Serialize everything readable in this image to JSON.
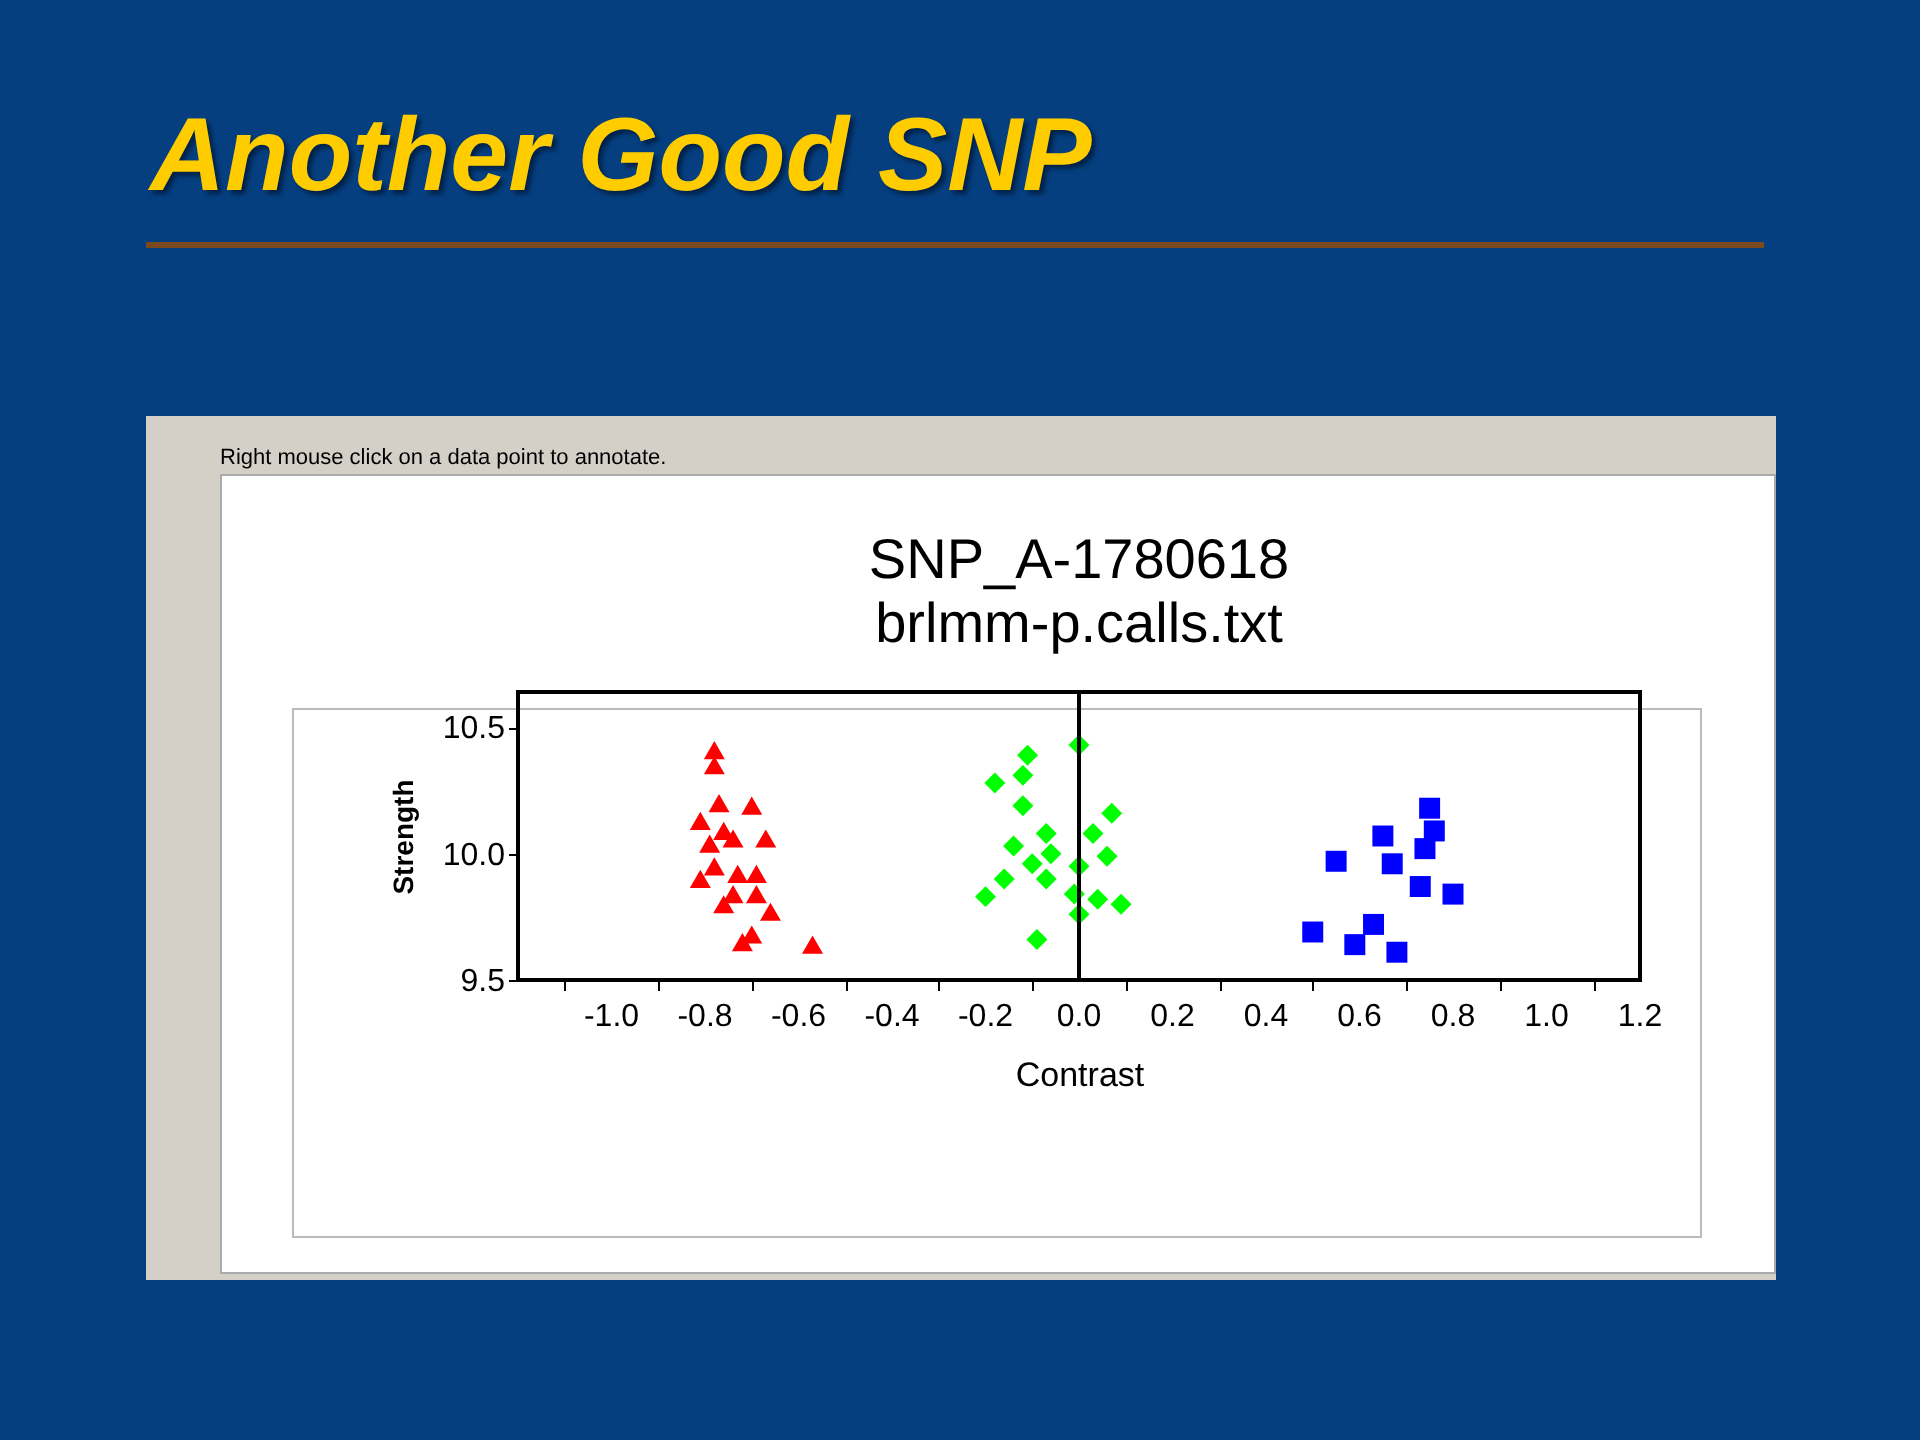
{
  "chart_data": {
    "type": "scatter",
    "title": "Another Good SNP",
    "subtitle": "SNP_A-1780618\nbrlmm-p.calls.txt",
    "annotations": [
      "Right mouse click on a data point to annotate."
    ],
    "xlabel": "Contrast",
    "ylabel": "Strength",
    "xlim": [
      -1.2,
      1.2
    ],
    "ylim": [
      9.5,
      10.64
    ],
    "xticks": [
      {
        "value": -1.1,
        "label": null
      },
      {
        "value": -1,
        "label": "-1.0"
      },
      {
        "value": -0.9,
        "label": null
      },
      {
        "value": -0.8,
        "label": "-0.8"
      },
      {
        "value": -0.7,
        "label": null
      },
      {
        "value": -0.6,
        "label": "-0.6"
      },
      {
        "value": -0.5,
        "label": null
      },
      {
        "value": -0.4,
        "label": "-0.4"
      },
      {
        "value": -0.3,
        "label": null
      },
      {
        "value": -0.2,
        "label": "-0.2"
      },
      {
        "value": -0.1,
        "label": null
      },
      {
        "value": 0,
        "label": "0.0"
      },
      {
        "value": 0.1,
        "label": null
      },
      {
        "value": 0.2,
        "label": "0.2"
      },
      {
        "value": 0.3,
        "label": null
      },
      {
        "value": 0.4,
        "label": "0.4"
      },
      {
        "value": 0.5,
        "label": null
      },
      {
        "value": 0.6,
        "label": "0.6"
      },
      {
        "value": 0.7,
        "label": null
      },
      {
        "value": 0.8,
        "label": "0.8"
      },
      {
        "value": 0.9,
        "label": null
      },
      {
        "value": 1,
        "label": "1.0"
      },
      {
        "value": 1.1,
        "label": null
      },
      {
        "value": 1.2,
        "label": "1.2"
      }
    ],
    "yticks": [
      9.5,
      {
        "value": 10,
        "label": "10.0"
      },
      10.5
    ],
    "grid": false,
    "legend": false,
    "ref_lines": [
      {
        "axis": "x",
        "value": 0,
        "color": "#000000"
      }
    ],
    "series": [
      {
        "color": "#ff0000",
        "marker": "triangle",
        "x": [
          -0.78,
          -0.78,
          -0.77,
          -0.7,
          -0.81,
          -0.76,
          -0.67,
          -0.74,
          -0.79,
          -0.78,
          -0.81,
          -0.73,
          -0.69,
          -0.74,
          -0.69,
          -0.76,
          -0.66,
          -0.7,
          -0.72,
          -0.57
        ],
        "values": [
          10.41,
          10.35,
          10.2,
          10.19,
          10.13,
          10.09,
          10.06,
          10.06,
          10.04,
          9.95,
          9.9,
          9.92,
          9.92,
          9.84,
          9.84,
          9.8,
          9.77,
          9.68,
          9.65,
          9.64
        ]
      },
      {
        "color": "#00ff00",
        "marker": "diamond",
        "x": [
          0.0,
          -0.11,
          -0.12,
          -0.18,
          -0.12,
          0.07,
          -0.07,
          0.03,
          -0.14,
          -0.06,
          0.06,
          -0.1,
          0.0,
          -0.16,
          -0.07,
          -0.2,
          -0.01,
          0.04,
          0.09,
          0.0,
          -0.09
        ],
        "values": [
          10.43,
          10.39,
          10.31,
          10.28,
          10.19,
          10.16,
          10.08,
          10.08,
          10.03,
          10.0,
          9.99,
          9.96,
          9.95,
          9.9,
          9.9,
          9.83,
          9.84,
          9.82,
          9.8,
          9.76,
          9.66
        ]
      },
      {
        "color": "#0000ff",
        "marker": "square",
        "x": [
          0.75,
          0.76,
          0.65,
          0.74,
          0.55,
          0.67,
          0.73,
          0.8,
          0.63,
          0.5,
          0.59,
          0.68
        ],
        "values": [
          10.18,
          10.09,
          10.07,
          10.02,
          9.97,
          9.96,
          9.87,
          9.84,
          9.72,
          9.69,
          9.64,
          9.61
        ]
      }
    ]
  }
}
